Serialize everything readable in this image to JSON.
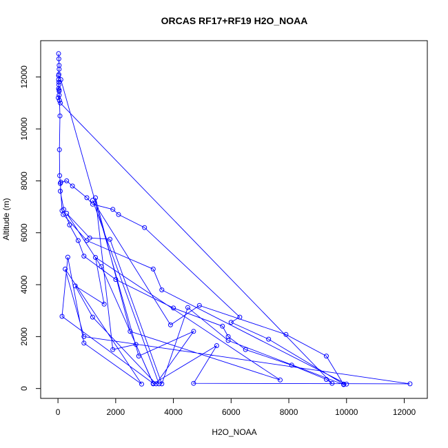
{
  "chart_data": {
    "type": "scatter",
    "title": "ORCAS RF17+RF19 H2O_NOAA",
    "xlabel": "H2O_NOAA",
    "ylabel": "Altitude (m)",
    "xlim": [
      -600,
      12800
    ],
    "ylim": [
      -380,
      13400
    ],
    "x_ticks": [
      0,
      2000,
      4000,
      6000,
      8000,
      10000,
      12000
    ],
    "y_ticks": [
      0,
      2000,
      4000,
      6000,
      8000,
      10000,
      12000
    ],
    "grid": false,
    "legend": "none",
    "point_color": "#0000ff",
    "line_color": "#0000ff",
    "series": [
      {
        "x": [
          20,
          30,
          40,
          40,
          30,
          20,
          30,
          20,
          40,
          40,
          10,
          50,
          80,
          9500,
          9300,
          8100,
          6500,
          5900,
          5700,
          4000,
          2000,
          900,
          700,
          400,
          200,
          80,
          100,
          300,
          500,
          1000,
          1200,
          1900,
          2100,
          3000,
          6300,
          6000,
          7300,
          9900,
          10000,
          3600,
          3300,
          1000,
          180,
          140,
          80,
          60,
          50,
          70,
          40,
          30,
          20,
          100,
          2800,
          4700,
          3400,
          1200,
          600,
          1600,
          1300,
          7700,
          2500,
          1300,
          1900,
          2700,
          3300,
          5500,
          4700,
          12200,
          900,
          250,
          2900,
          900,
          340,
          140,
          3300,
          1500,
          300,
          1100,
          1800,
          3600,
          4500,
          5900,
          9900,
          9300,
          7900,
          4900,
          3900,
          1200,
          3500
        ],
        "y": [
          12900,
          12700,
          12450,
          12300,
          12100,
          11900,
          11700,
          11550,
          11450,
          11300,
          11200,
          11100,
          11000,
          200,
          350,
          900,
          1500,
          2000,
          2400,
          3100,
          4200,
          5100,
          5700,
          6300,
          6900,
          7600,
          7950,
          8000,
          7800,
          7350,
          7100,
          6900,
          6700,
          6200,
          2750,
          2550,
          1900,
          170,
          170,
          3800,
          4600,
          5700,
          6700,
          6850,
          7900,
          8200,
          9200,
          10500,
          11500,
          11800,
          12050,
          11900,
          1250,
          2200,
          180,
          2750,
          3950,
          3250,
          5050,
          330,
          2200,
          7350,
          1500,
          1700,
          180,
          1650,
          200,
          180,
          2000,
          4600,
          170,
          1750,
          5060,
          2780,
          200,
          4700,
          6750,
          5800,
          5750,
          180,
          3120,
          1850,
          150,
          1250,
          2080,
          3200,
          2450,
          7250,
          180
        ]
      }
    ]
  }
}
